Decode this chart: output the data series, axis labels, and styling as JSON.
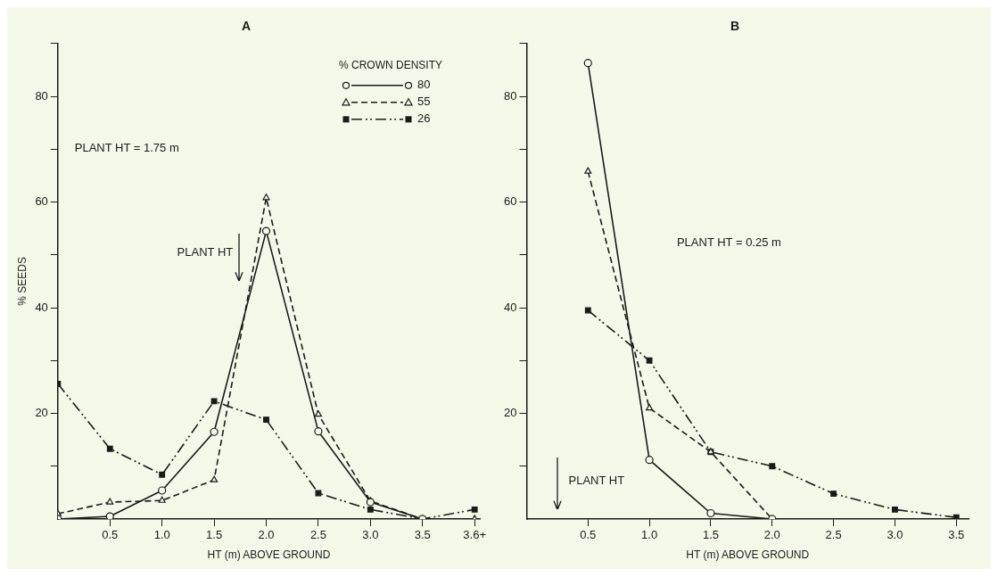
{
  "chart_data": [
    {
      "type": "line",
      "title": "A",
      "xlabel": "HT (m) ABOVE GROUND",
      "ylabel": "% SEEDS",
      "legend_title": "% CROWN DENSITY",
      "legend": "top right",
      "grid": false,
      "xlim": [
        0,
        4.05
      ],
      "xticks": [
        0.5,
        {
          "value": 1,
          "label": "1.0"
        },
        1.5,
        {
          "value": 2,
          "label": "2.0"
        },
        2.5,
        {
          "value": 3,
          "label": "3.0"
        },
        3.5,
        {
          "value": 4,
          "label": "3.6+"
        }
      ],
      "ylim": [
        0,
        90
      ],
      "yticks": [
        {
          "value": 10,
          "label": null
        },
        20,
        {
          "value": 30,
          "label": null
        },
        40,
        {
          "value": 50,
          "label": null
        },
        60,
        {
          "value": 70,
          "label": null
        },
        80,
        {
          "value": 90,
          "label": null
        }
      ],
      "annotations": [
        "PLANT HT = 1.75 m",
        "PLANT HT"
      ],
      "series": [
        {
          "name": "80",
          "color": "#1a1a1a",
          "marker": "circle",
          "line_style": "solid",
          "x": [
            0,
            0.5,
            1,
            1.5,
            2,
            2.5,
            3,
            3.5
          ],
          "values": [
            0,
            0.5,
            5.4,
            16.5,
            54.5,
            16.6,
            3.2,
            0
          ]
        },
        {
          "name": "55",
          "color": "#1a1a1a",
          "marker": "triangle",
          "line_style": "dashed",
          "x": [
            0,
            0.5,
            1,
            1.5,
            2,
            2.5,
            3,
            3.5,
            4
          ],
          "values": [
            1,
            3.2,
            3.5,
            7.4,
            60.8,
            19.8,
            3.4,
            0,
            0
          ]
        },
        {
          "name": "26",
          "color": "#1a1a1a",
          "marker": "square",
          "line_style": "dotted",
          "x": [
            0,
            0.5,
            1,
            1.5,
            2,
            2.5,
            3,
            3.5,
            4
          ],
          "values": [
            25.6,
            13.3,
            8.4,
            22.3,
            18.8,
            4.9,
            1.8,
            0,
            1.8
          ]
        }
      ]
    },
    {
      "type": "line",
      "title": "B",
      "xlabel": "HT (m) ABOVE GROUND",
      "grid": false,
      "xlim": [
        0,
        3.6
      ],
      "xticks": [
        0.5,
        {
          "value": 1,
          "label": "1.0"
        },
        1.5,
        {
          "value": 2,
          "label": "2.0"
        },
        2.5,
        {
          "value": 3,
          "label": "3.0"
        },
        3.5
      ],
      "ylim": [
        0,
        90
      ],
      "yticks": [
        {
          "value": 10,
          "label": null
        },
        20,
        {
          "value": 30,
          "label": null
        },
        40,
        {
          "value": 50,
          "label": null
        },
        60,
        {
          "value": 70,
          "label": null
        },
        80,
        {
          "value": 90,
          "label": null
        }
      ],
      "annotations": [
        "PLANT HT = 0.25 m",
        "PLANT HT"
      ],
      "series": [
        {
          "color": "#1a1a1a",
          "marker": "circle",
          "line_style": "solid",
          "x": [
            0.5,
            1,
            1.5,
            2
          ],
          "values": [
            86.3,
            11.2,
            1.1,
            0
          ]
        },
        {
          "color": "#1a1a1a",
          "marker": "triangle",
          "line_style": "dashed",
          "x": [
            0.5,
            1,
            1.5,
            2
          ],
          "values": [
            65.8,
            21,
            12.7,
            0
          ]
        },
        {
          "color": "#1a1a1a",
          "marker": "square",
          "line_style": "dotted",
          "x": [
            0.5,
            1,
            1.5,
            2,
            2.5,
            3,
            3.5
          ],
          "values": [
            39.5,
            30,
            12.7,
            10,
            4.8,
            1.8,
            0.3
          ]
        }
      ]
    }
  ]
}
